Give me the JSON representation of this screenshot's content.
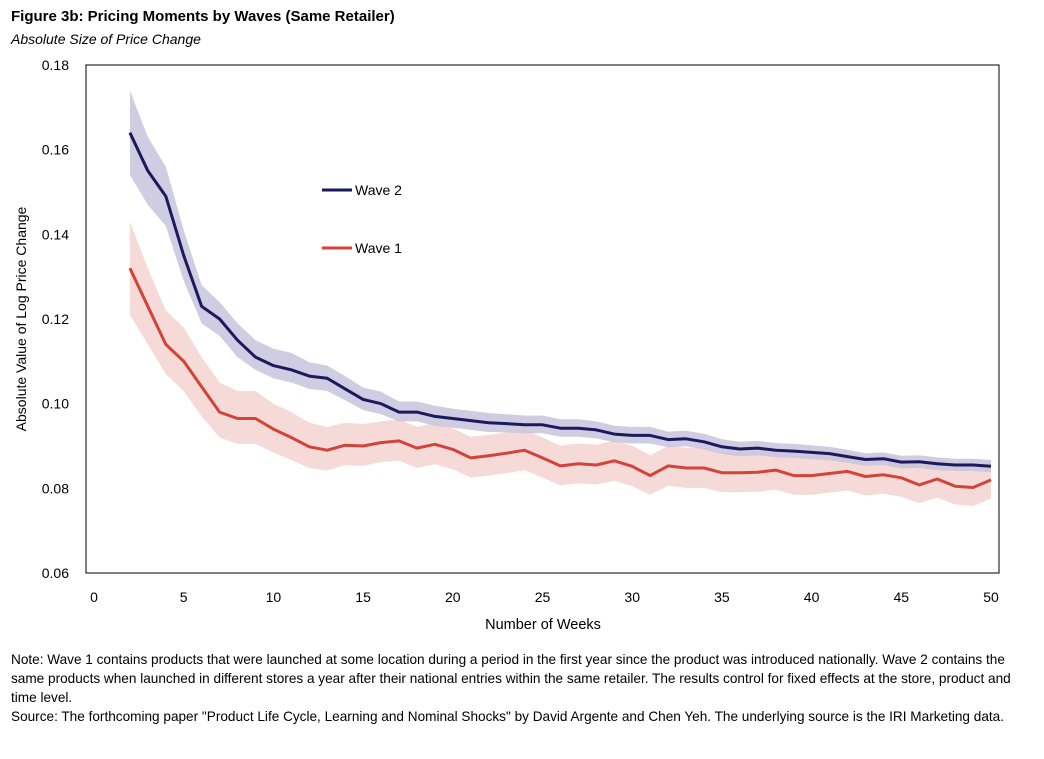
{
  "header": {
    "title": "Figure 3b: Pricing Moments by Waves (Same Retailer)",
    "subtitle": "Absolute Size of Price Change"
  },
  "notes": {
    "note": "Note: Wave 1 contains products that were launched at some location during a period in the first year since the product was introduced nationally. Wave 2 contains the same products when launched in different stores a year after their national entries within the same retailer. The results control for fixed effects at the store, product and time level.",
    "source": "Source: The forthcoming paper \"Product Life Cycle, Learning and Nominal Shocks\" by David Argente and Chen Yeh. The underlying source is the IRI Marketing data."
  },
  "colors": {
    "wave2_line": "#1c1a5e",
    "wave2_band": "#c8c3dc",
    "wave1_line": "#d2433a",
    "wave1_band": "#f5d3d0"
  },
  "chart_data": {
    "type": "line",
    "title": "Figure 3b: Pricing Moments by Waves (Same Retailer)",
    "subtitle": "Absolute Size of Price Change",
    "xlabel": "Number of Weeks",
    "ylabel": "Absolute Value of Log Price Change",
    "xlim": [
      0,
      50
    ],
    "ylim": [
      0.06,
      0.18
    ],
    "xticks": [
      0,
      5,
      10,
      15,
      20,
      25,
      30,
      35,
      40,
      45,
      50
    ],
    "yticks": [
      "0.06",
      "0.08",
      "0.10",
      "0.12",
      "0.14",
      "0.16",
      "0.18"
    ],
    "legend_position": "upper-middle-left",
    "grid": false,
    "x": [
      2,
      3,
      4,
      5,
      6,
      7,
      8,
      9,
      10,
      11,
      12,
      13,
      14,
      15,
      16,
      17,
      18,
      19,
      20,
      21,
      22,
      23,
      24,
      25,
      26,
      27,
      28,
      29,
      30,
      31,
      32,
      33,
      34,
      35,
      36,
      37,
      38,
      39,
      40,
      41,
      42,
      43,
      44,
      45,
      46,
      47,
      48,
      49,
      50
    ],
    "series": [
      {
        "name": "Wave 2",
        "values": [
          0.164,
          0.155,
          0.149,
          0.135,
          0.123,
          0.12,
          0.115,
          0.111,
          0.109,
          0.108,
          0.1065,
          0.106,
          0.1035,
          0.101,
          0.1,
          0.098,
          0.098,
          0.097,
          0.0965,
          0.096,
          0.0955,
          0.0953,
          0.095,
          0.095,
          0.0942,
          0.0942,
          0.0938,
          0.0928,
          0.0925,
          0.0925,
          0.0915,
          0.0917,
          0.091,
          0.0898,
          0.0893,
          0.0895,
          0.089,
          0.0888,
          0.0885,
          0.0882,
          0.0875,
          0.0868,
          0.087,
          0.0862,
          0.0863,
          0.0858,
          0.0855,
          0.0855,
          0.0852
        ],
        "lower": [
          0.154,
          0.147,
          0.142,
          0.129,
          0.119,
          0.116,
          0.111,
          0.108,
          0.106,
          0.105,
          0.1035,
          0.103,
          0.1008,
          0.0985,
          0.0975,
          0.0958,
          0.0958,
          0.0948,
          0.0943,
          0.0938,
          0.0933,
          0.0932,
          0.093,
          0.093,
          0.0922,
          0.0922,
          0.0918,
          0.0909,
          0.0906,
          0.0906,
          0.0897,
          0.0899,
          0.0892,
          0.0881,
          0.0876,
          0.0878,
          0.0873,
          0.0872,
          0.0869,
          0.0866,
          0.086,
          0.0853,
          0.0855,
          0.0847,
          0.0848,
          0.0843,
          0.0841,
          0.0841,
          0.0838
        ],
        "upper": [
          0.174,
          0.163,
          0.156,
          0.141,
          0.128,
          0.124,
          0.119,
          0.115,
          0.113,
          0.112,
          0.1098,
          0.109,
          0.1065,
          0.1038,
          0.1028,
          0.1005,
          0.1005,
          0.0995,
          0.0988,
          0.0983,
          0.0978,
          0.0975,
          0.0972,
          0.0972,
          0.0963,
          0.0963,
          0.0958,
          0.0948,
          0.0945,
          0.0945,
          0.0934,
          0.0936,
          0.0929,
          0.0916,
          0.091,
          0.0912,
          0.0907,
          0.0905,
          0.0902,
          0.0898,
          0.0891,
          0.0883,
          0.0885,
          0.0877,
          0.0878,
          0.0873,
          0.087,
          0.087,
          0.0867
        ]
      },
      {
        "name": "Wave 1",
        "values": [
          0.132,
          0.123,
          0.114,
          0.11,
          0.104,
          0.098,
          0.0965,
          0.0965,
          0.094,
          0.092,
          0.0898,
          0.089,
          0.0902,
          0.09,
          0.0908,
          0.0912,
          0.0895,
          0.0904,
          0.0892,
          0.0872,
          0.0877,
          0.0883,
          0.089,
          0.0872,
          0.0853,
          0.0858,
          0.0855,
          0.0865,
          0.0852,
          0.083,
          0.0853,
          0.0848,
          0.0848,
          0.0837,
          0.0837,
          0.0838,
          0.0843,
          0.083,
          0.083,
          0.0835,
          0.084,
          0.0828,
          0.0832,
          0.0825,
          0.0808,
          0.0822,
          0.0805,
          0.0802,
          0.082
        ],
        "lower": [
          0.121,
          0.114,
          0.107,
          0.103,
          0.097,
          0.092,
          0.0905,
          0.0905,
          0.0885,
          0.0867,
          0.0848,
          0.0842,
          0.0855,
          0.0853,
          0.0862,
          0.0865,
          0.0848,
          0.0857,
          0.0845,
          0.0825,
          0.083,
          0.0836,
          0.0843,
          0.0825,
          0.0807,
          0.0812,
          0.0809,
          0.0818,
          0.0805,
          0.0785,
          0.0806,
          0.0801,
          0.0801,
          0.0791,
          0.0791,
          0.0792,
          0.0797,
          0.0785,
          0.0785,
          0.079,
          0.0795,
          0.0783,
          0.0787,
          0.078,
          0.0765,
          0.0778,
          0.0762,
          0.0758,
          0.0776
        ],
        "upper": [
          0.143,
          0.132,
          0.122,
          0.118,
          0.111,
          0.105,
          0.103,
          0.103,
          0.1,
          0.098,
          0.0955,
          0.0945,
          0.0955,
          0.0952,
          0.0958,
          0.0963,
          0.0945,
          0.0955,
          0.0942,
          0.0922,
          0.0926,
          0.0932,
          0.0938,
          0.092,
          0.0901,
          0.0906,
          0.0903,
          0.0913,
          0.0901,
          0.0878,
          0.09,
          0.0896,
          0.0896,
          0.0884,
          0.0884,
          0.0886,
          0.089,
          0.0877,
          0.0877,
          0.0882,
          0.0887,
          0.0875,
          0.0879,
          0.0872,
          0.0854,
          0.0868,
          0.085,
          0.0848,
          0.0866
        ]
      }
    ]
  }
}
